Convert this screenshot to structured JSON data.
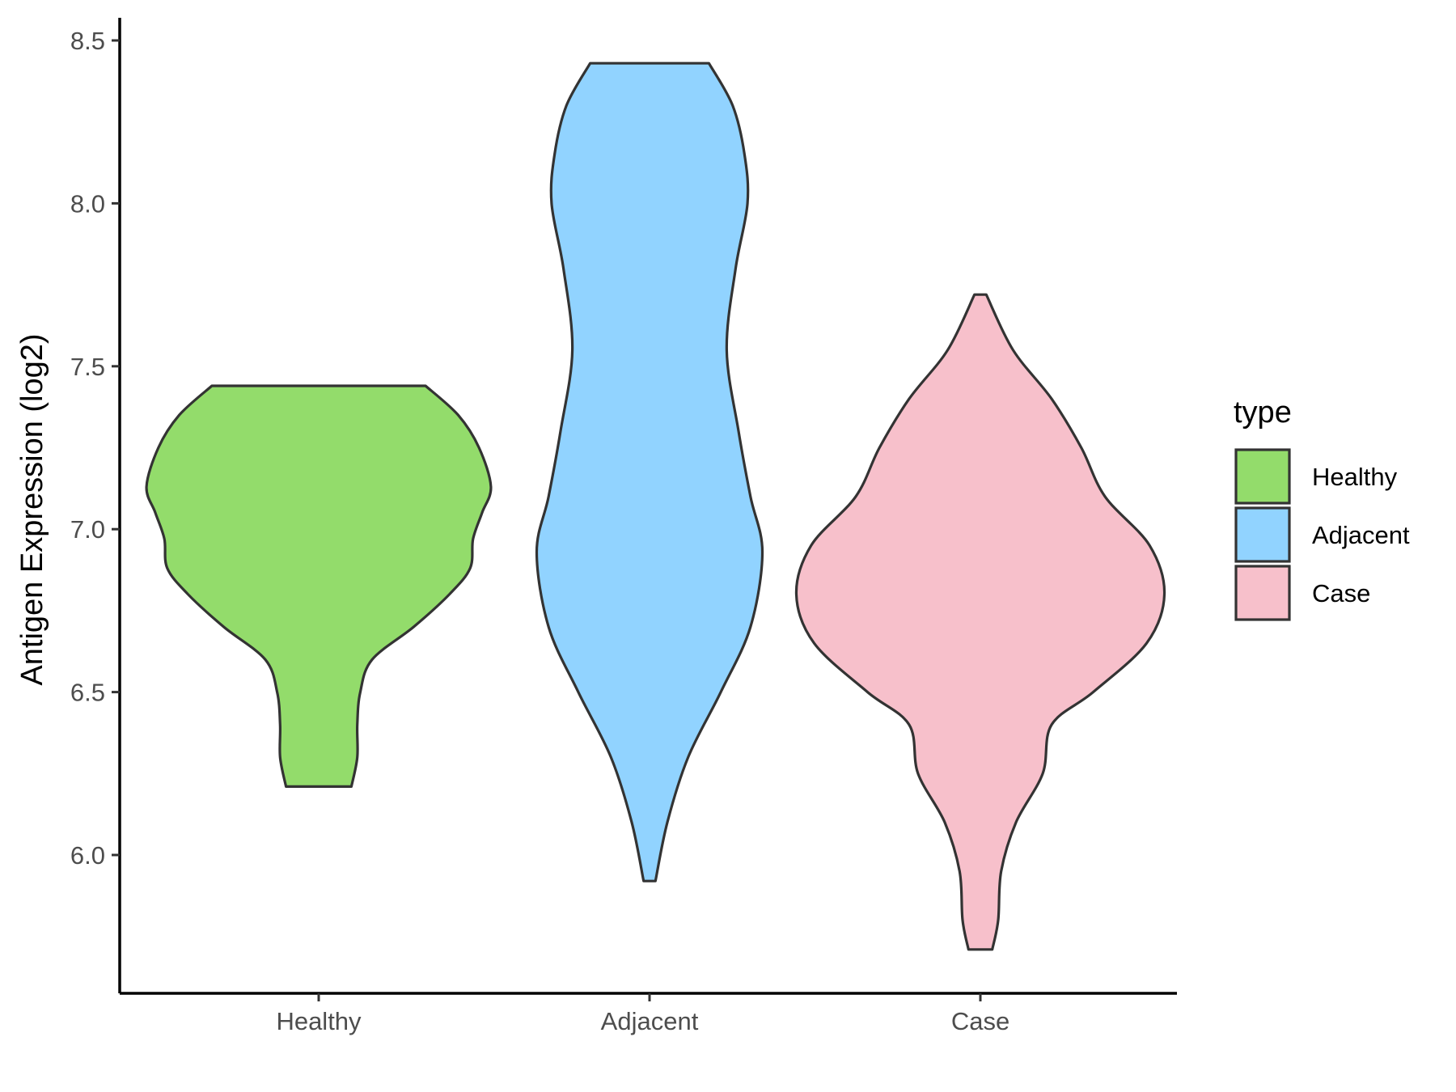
{
  "chart_data": {
    "type": "violin",
    "categories": [
      "Healthy",
      "Adjacent",
      "Case"
    ],
    "ylabel": "Antigen Expression (log2)",
    "xlabel": "",
    "ylim": [
      5.63,
      8.6
    ],
    "yticks": [
      "6.0",
      "6.5",
      "7.0",
      "7.5",
      "8.0",
      "8.5"
    ],
    "ytick_values": [
      6.0,
      6.5,
      7.0,
      7.5,
      8.0,
      8.5
    ],
    "grid": false,
    "legend": {
      "title": "type",
      "position": "right",
      "entries": [
        "Healthy",
        "Adjacent",
        "Case"
      ]
    },
    "series": [
      {
        "name": "Healthy",
        "color": "#93dc6b",
        "min": 6.21,
        "max": 7.44,
        "profile": [
          [
            7.44,
            0.36
          ],
          [
            7.35,
            0.47
          ],
          [
            7.25,
            0.54
          ],
          [
            7.13,
            0.58
          ],
          [
            7.05,
            0.55
          ],
          [
            6.97,
            0.52
          ],
          [
            6.88,
            0.51
          ],
          [
            6.8,
            0.44
          ],
          [
            6.7,
            0.32
          ],
          [
            6.6,
            0.18
          ],
          [
            6.5,
            0.14
          ],
          [
            6.4,
            0.13
          ],
          [
            6.3,
            0.13
          ],
          [
            6.21,
            0.11
          ]
        ]
      },
      {
        "name": "Adjacent",
        "color": "#91d3ff",
        "min": 5.92,
        "max": 8.43,
        "profile": [
          [
            8.43,
            0.2
          ],
          [
            8.3,
            0.28
          ],
          [
            8.15,
            0.32
          ],
          [
            8.0,
            0.33
          ],
          [
            7.8,
            0.29
          ],
          [
            7.55,
            0.26
          ],
          [
            7.3,
            0.3
          ],
          [
            7.1,
            0.34
          ],
          [
            6.93,
            0.38
          ],
          [
            6.7,
            0.34
          ],
          [
            6.5,
            0.24
          ],
          [
            6.3,
            0.13
          ],
          [
            6.1,
            0.06
          ],
          [
            5.92,
            0.02
          ]
        ]
      },
      {
        "name": "Case",
        "color": "#f7c0cb",
        "min": 5.71,
        "max": 7.72,
        "profile": [
          [
            7.72,
            0.02
          ],
          [
            7.55,
            0.11
          ],
          [
            7.4,
            0.24
          ],
          [
            7.25,
            0.34
          ],
          [
            7.1,
            0.42
          ],
          [
            6.95,
            0.57
          ],
          [
            6.8,
            0.62
          ],
          [
            6.65,
            0.56
          ],
          [
            6.5,
            0.38
          ],
          [
            6.4,
            0.24
          ],
          [
            6.25,
            0.21
          ],
          [
            6.1,
            0.12
          ],
          [
            5.95,
            0.07
          ],
          [
            5.8,
            0.06
          ],
          [
            5.71,
            0.04
          ]
        ]
      }
    ]
  }
}
